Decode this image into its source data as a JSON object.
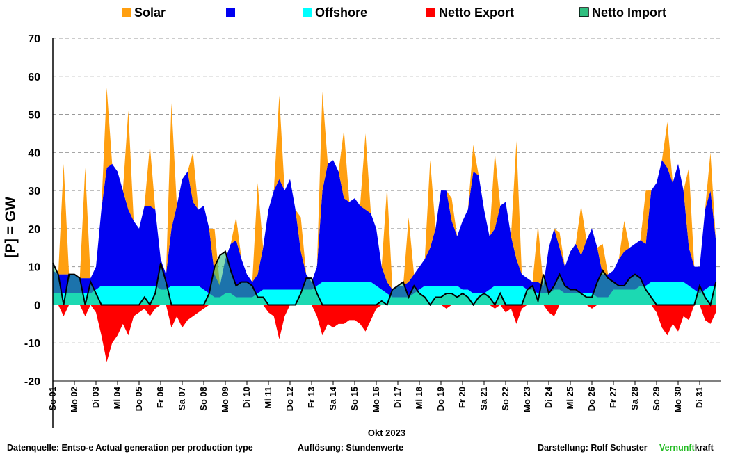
{
  "chart_data": {
    "type": "area",
    "ylabel": "[P] = GW",
    "xlabel": "Okt 2023",
    "footer": {
      "source": "Datenquelle: Entso-e  Actual generation per production type",
      "resolution": "Auflösung: Stundenwerte",
      "author": "Darstellung:  Rolf Schuster",
      "brand_a": "Vernunft",
      "brand_b": "kraft"
    },
    "ylim": [
      -20,
      70
    ],
    "yticks": [
      -20,
      -10,
      0,
      10,
      20,
      30,
      40,
      50,
      60,
      70
    ],
    "grid": true,
    "xlim": [
      0,
      31
    ],
    "xticks": [
      {
        "value": 0,
        "label": "So 01"
      },
      {
        "value": 1,
        "label": "Mo 02"
      },
      {
        "value": 2,
        "label": "Di 03"
      },
      {
        "value": 3,
        "label": "Mi 04"
      },
      {
        "value": 4,
        "label": "Do 05"
      },
      {
        "value": 5,
        "label": "Fr 06"
      },
      {
        "value": 6,
        "label": "Sa 07"
      },
      {
        "value": 7,
        "label": "So 08"
      },
      {
        "value": 8,
        "label": "Mo 09"
      },
      {
        "value": 9,
        "label": "Di 10"
      },
      {
        "value": 10,
        "label": "Mi 11"
      },
      {
        "value": 11,
        "label": "Do 12"
      },
      {
        "value": 12,
        "label": "Fr 13"
      },
      {
        "value": 13,
        "label": "Sa 14"
      },
      {
        "value": 14,
        "label": "So 15"
      },
      {
        "value": 15,
        "label": "Mo 16"
      },
      {
        "value": 16,
        "label": "Di 17"
      },
      {
        "value": 17,
        "label": "Mi 18"
      },
      {
        "value": 18,
        "label": "Do 19"
      },
      {
        "value": 19,
        "label": "Fr 20"
      },
      {
        "value": 20,
        "label": "Sa 21"
      },
      {
        "value": 21,
        "label": "So 22"
      },
      {
        "value": 22,
        "label": "Mo 23"
      },
      {
        "value": 23,
        "label": "Di 24"
      },
      {
        "value": 24,
        "label": "Mi 25"
      },
      {
        "value": 25,
        "label": "Do 26"
      },
      {
        "value": 26,
        "label": "Fr 27"
      },
      {
        "value": 27,
        "label": "Sa 28"
      },
      {
        "value": 28,
        "label": "So 29"
      },
      {
        "value": 29,
        "label": "Mo 30"
      },
      {
        "value": 30,
        "label": "Di 31"
      }
    ],
    "x": [
      0,
      0.25,
      0.5,
      0.75,
      1,
      1.25,
      1.5,
      1.75,
      2,
      2.25,
      2.5,
      2.75,
      3,
      3.25,
      3.5,
      3.75,
      4,
      4.25,
      4.5,
      4.75,
      5,
      5.25,
      5.5,
      5.75,
      6,
      6.25,
      6.5,
      6.75,
      7,
      7.25,
      7.5,
      7.75,
      8,
      8.25,
      8.5,
      8.75,
      9,
      9.25,
      9.5,
      9.75,
      10,
      10.25,
      10.5,
      10.75,
      11,
      11.25,
      11.5,
      11.75,
      12,
      12.25,
      12.5,
      12.75,
      13,
      13.25,
      13.5,
      13.75,
      14,
      14.25,
      14.5,
      14.75,
      15,
      15.25,
      15.5,
      15.75,
      16,
      16.25,
      16.5,
      16.75,
      17,
      17.25,
      17.5,
      17.75,
      18,
      18.25,
      18.5,
      18.75,
      19,
      19.25,
      19.5,
      19.75,
      20,
      20.25,
      20.5,
      20.75,
      21,
      21.25,
      21.5,
      21.75,
      22,
      22.25,
      22.5,
      22.75,
      23,
      23.25,
      23.5,
      23.75,
      24,
      24.25,
      24.5,
      24.75,
      25,
      25.25,
      25.5,
      25.75,
      26,
      26.25,
      26.5,
      26.75,
      27,
      27.25,
      27.5,
      27.75,
      28,
      28.25,
      28.5,
      28.75,
      29,
      29.25,
      29.5,
      29.75,
      30,
      30.25,
      30.5,
      30.75
    ],
    "series": [
      {
        "name": "Solar",
        "color": "#ff9f10",
        "values": [
          0,
          0,
          29,
          0,
          0,
          0,
          29,
          0,
          0,
          0,
          21,
          0,
          0,
          0,
          26,
          0,
          0,
          0,
          16,
          0,
          0,
          0,
          33,
          0,
          0,
          0,
          13,
          0,
          0,
          0,
          12,
          0,
          0,
          0,
          6,
          0,
          0,
          0,
          24,
          0,
          0,
          0,
          22,
          0,
          0,
          0,
          9,
          0,
          0,
          0,
          26,
          0,
          0,
          0,
          18,
          0,
          0,
          0,
          20,
          0,
          0,
          0,
          25,
          0,
          0,
          0,
          17,
          0,
          0,
          0,
          23,
          0,
          0,
          0,
          6,
          0,
          0,
          0,
          7,
          0,
          0,
          0,
          20,
          0,
          0,
          0,
          31,
          0,
          0,
          0,
          15,
          0,
          0,
          0,
          4,
          0,
          0,
          0,
          13,
          0,
          0,
          0,
          8,
          0,
          0,
          0,
          8,
          0,
          0,
          0,
          14,
          0,
          0,
          0,
          12,
          0,
          0,
          0,
          21,
          0,
          0,
          0,
          10,
          0
        ]
      },
      {
        "color": "#0000f0",
        "values": [
          6,
          5,
          5,
          5,
          5,
          4,
          4,
          4,
          6,
          20,
          31,
          32,
          30,
          25,
          20,
          17,
          15,
          21,
          21,
          20,
          8,
          4,
          15,
          21,
          28,
          30,
          22,
          20,
          22,
          17,
          6,
          3,
          9,
          13,
          15,
          10,
          6,
          4,
          5,
          11,
          21,
          26,
          29,
          26,
          29,
          21,
          10,
          4,
          2,
          5,
          24,
          31,
          32,
          29,
          22,
          21,
          22,
          20,
          19,
          18,
          15,
          6,
          3,
          2,
          3,
          3,
          4,
          5,
          6,
          7,
          10,
          15,
          25,
          25,
          17,
          13,
          18,
          21,
          32,
          31,
          22,
          14,
          15,
          21,
          22,
          13,
          7,
          3,
          3,
          2,
          3,
          2,
          12,
          16,
          11,
          7,
          11,
          13,
          10,
          14,
          17,
          13,
          6,
          6,
          5,
          8,
          10,
          11,
          12,
          12,
          11,
          24,
          26,
          32,
          30,
          26,
          31,
          24,
          10,
          6,
          7,
          21,
          25,
          12
        ]
      },
      {
        "name": "Offshore",
        "color": "#00ffff",
        "values": [
          3,
          3,
          3,
          3,
          3,
          3,
          3,
          3,
          4,
          5,
          5,
          5,
          5,
          5,
          5,
          5,
          5,
          5,
          5,
          5,
          4,
          4,
          5,
          5,
          5,
          5,
          5,
          5,
          4,
          3,
          2,
          2,
          3,
          3,
          2,
          2,
          2,
          2,
          3,
          4,
          4,
          4,
          4,
          4,
          4,
          4,
          4,
          4,
          4,
          5,
          6,
          6,
          6,
          6,
          6,
          6,
          6,
          6,
          6,
          6,
          5,
          4,
          3,
          2,
          2,
          2,
          2,
          3,
          4,
          5,
          5,
          5,
          5,
          5,
          5,
          5,
          4,
          4,
          3,
          3,
          3,
          4,
          5,
          5,
          5,
          5,
          5,
          5,
          4,
          4,
          3,
          3,
          3,
          4,
          4,
          3,
          3,
          3,
          3,
          3,
          3,
          2,
          2,
          2,
          4,
          4,
          4,
          4,
          4,
          5,
          5,
          6,
          6,
          6,
          6,
          6,
          6,
          6,
          5,
          4,
          3,
          4,
          5,
          5
        ]
      },
      {
        "name": "Netto Export",
        "color": "#ff0000",
        "values": [
          0,
          0,
          -3,
          0,
          0,
          0,
          -3,
          0,
          -2,
          -8,
          -15,
          -10,
          -8,
          -5,
          -8,
          -3,
          -2,
          -1,
          -3,
          -1,
          0,
          0,
          -6,
          -3,
          -6,
          -4,
          -3,
          -2,
          -1,
          0,
          0,
          0,
          0,
          0,
          0,
          0,
          0,
          0,
          0,
          0,
          -2,
          -3,
          -9,
          -3,
          0,
          0,
          0,
          0,
          0,
          -3,
          -8,
          -5,
          -6,
          -5,
          -5,
          -4,
          -4,
          -5,
          -7,
          -4,
          -1,
          0,
          0,
          0,
          0,
          0,
          0,
          0,
          0,
          0,
          0,
          0,
          0,
          -1,
          0,
          0,
          0,
          0,
          0,
          0,
          0,
          0,
          -1,
          0,
          -2,
          -1,
          -5,
          -1,
          0,
          0,
          0,
          0,
          -2,
          -3,
          0,
          0,
          0,
          0,
          0,
          0,
          -1,
          0,
          0,
          0,
          0,
          0,
          0,
          0,
          0,
          0,
          0,
          0,
          -2,
          -6,
          -8,
          -5,
          -7,
          -3,
          -4,
          0,
          0,
          -4,
          -5,
          -2
        ]
      },
      {
        "name": "Netto Import",
        "color": "#2fbf7f",
        "values": [
          11,
          8,
          0,
          8,
          8,
          7,
          0,
          6,
          3,
          0,
          0,
          0,
          0,
          0,
          0,
          0,
          0,
          2,
          0,
          3,
          11,
          6,
          0,
          0,
          0,
          0,
          0,
          0,
          0,
          3,
          10,
          13,
          14,
          9,
          5,
          6,
          6,
          5,
          2,
          2,
          0,
          0,
          0,
          0,
          0,
          0,
          3,
          7,
          7,
          3,
          0,
          0,
          0,
          0,
          0,
          0,
          0,
          0,
          0,
          0,
          0,
          1,
          0,
          4,
          5,
          6,
          2,
          5,
          3,
          2,
          0,
          2,
          2,
          3,
          3,
          2,
          3,
          2,
          0,
          2,
          3,
          2,
          0,
          3,
          0,
          0,
          0,
          0,
          4,
          5,
          1,
          8,
          3,
          5,
          8,
          5,
          4,
          4,
          3,
          2,
          2,
          6,
          9,
          7,
          6,
          5,
          5,
          7,
          8,
          7,
          4,
          2,
          0,
          0,
          0,
          0,
          0,
          0,
          0,
          0,
          5,
          2,
          0,
          6
        ]
      }
    ]
  }
}
